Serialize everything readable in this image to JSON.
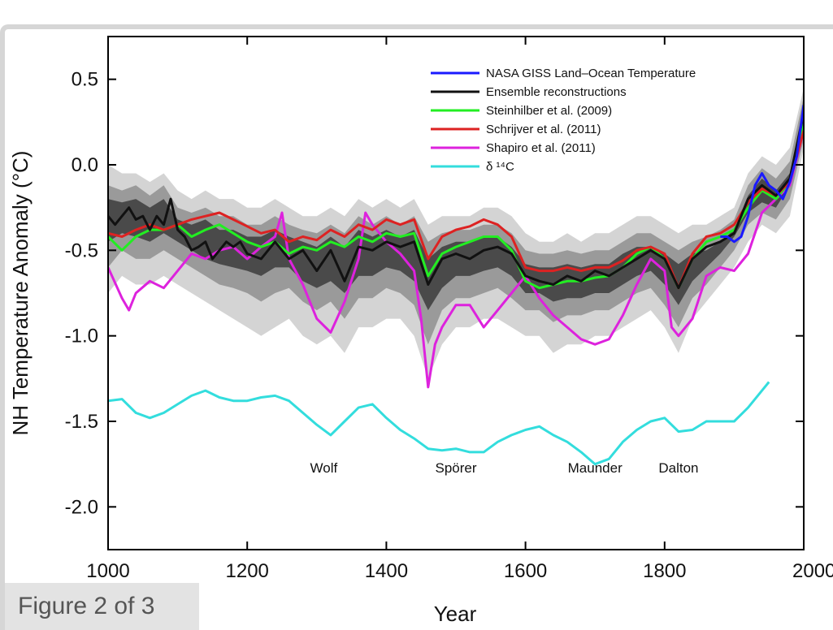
{
  "figure_caption": "Figure 2 of 3",
  "chart_data": {
    "type": "line",
    "xlabel": "Year",
    "ylabel": "NH Temperature Anomaly  (°C)",
    "xlim": [
      1000,
      2000
    ],
    "ylim": [
      -2.25,
      0.75
    ],
    "x_ticks": [
      1000,
      1200,
      1400,
      1600,
      1800,
      2000
    ],
    "y_ticks": [
      0.5,
      0.0,
      -0.5,
      -1.0,
      -1.5,
      -2.0
    ],
    "x_tick_labels": [
      "1000",
      "1200",
      "1400",
      "1600",
      "1800",
      "2000"
    ],
    "y_tick_labels": [
      "0.5",
      "0.0",
      "-0.5",
      "-1.0",
      "-1.5",
      "-2.0"
    ],
    "legend_position": "top-right",
    "grid": false,
    "colors": {
      "nasa": "#1a1aff",
      "ensemble": "#111111",
      "steinhilber": "#22ee22",
      "schrijver": "#dd2222",
      "shapiro": "#dd22dd",
      "c14": "#33dddd",
      "band_outer": "#d4d4d4",
      "band_mid": "#9a9a9a",
      "band_inner": "#4a4a4a"
    },
    "ensemble_band": {
      "x": [
        1000,
        1020,
        1040,
        1060,
        1080,
        1100,
        1120,
        1140,
        1160,
        1180,
        1200,
        1220,
        1240,
        1260,
        1280,
        1300,
        1320,
        1340,
        1360,
        1380,
        1400,
        1420,
        1440,
        1460,
        1480,
        1500,
        1520,
        1540,
        1560,
        1580,
        1600,
        1620,
        1640,
        1660,
        1680,
        1700,
        1720,
        1740,
        1760,
        1780,
        1800,
        1820,
        1840,
        1860,
        1880,
        1900,
        1920,
        1940,
        1960,
        1980,
        2000
      ],
      "outer_low": [
        -0.75,
        -0.65,
        -0.7,
        -0.7,
        -0.65,
        -0.7,
        -0.75,
        -0.8,
        -0.85,
        -0.9,
        -0.95,
        -1.0,
        -0.95,
        -0.9,
        -1.0,
        -1.05,
        -1.0,
        -1.1,
        -0.95,
        -0.95,
        -0.9,
        -0.9,
        -1.0,
        -1.25,
        -1.05,
        -0.95,
        -0.95,
        -0.9,
        -0.9,
        -0.95,
        -1.0,
        -1.0,
        -1.1,
        -1.05,
        -1.05,
        -1.0,
        -1.0,
        -0.95,
        -0.9,
        -0.85,
        -0.95,
        -1.1,
        -0.9,
        -0.8,
        -0.7,
        -0.6,
        -0.45,
        -0.35,
        -0.4,
        -0.3,
        0.1
      ],
      "outer_high": [
        0.0,
        -0.05,
        -0.05,
        -0.1,
        -0.05,
        -0.15,
        -0.2,
        -0.15,
        -0.2,
        -0.2,
        -0.25,
        -0.25,
        -0.2,
        -0.25,
        -0.3,
        -0.3,
        -0.25,
        -0.3,
        -0.2,
        -0.25,
        -0.2,
        -0.25,
        -0.2,
        -0.35,
        -0.3,
        -0.3,
        -0.3,
        -0.25,
        -0.25,
        -0.3,
        -0.4,
        -0.45,
        -0.45,
        -0.4,
        -0.45,
        -0.4,
        -0.4,
        -0.35,
        -0.3,
        -0.3,
        -0.35,
        -0.4,
        -0.35,
        -0.35,
        -0.3,
        -0.25,
        -0.05,
        0.05,
        0.0,
        0.1,
        0.45
      ],
      "mid_low": [
        -0.6,
        -0.5,
        -0.55,
        -0.55,
        -0.5,
        -0.55,
        -0.6,
        -0.65,
        -0.7,
        -0.72,
        -0.75,
        -0.8,
        -0.75,
        -0.72,
        -0.8,
        -0.85,
        -0.8,
        -0.9,
        -0.78,
        -0.78,
        -0.72,
        -0.75,
        -0.82,
        -1.05,
        -0.85,
        -0.78,
        -0.78,
        -0.75,
        -0.72,
        -0.78,
        -0.85,
        -0.85,
        -0.92,
        -0.88,
        -0.88,
        -0.85,
        -0.85,
        -0.8,
        -0.75,
        -0.72,
        -0.82,
        -0.95,
        -0.78,
        -0.7,
        -0.6,
        -0.5,
        -0.35,
        -0.28,
        -0.32,
        -0.2,
        0.15
      ],
      "mid_high": [
        -0.12,
        -0.15,
        -0.12,
        -0.18,
        -0.12,
        -0.25,
        -0.28,
        -0.25,
        -0.3,
        -0.3,
        -0.35,
        -0.35,
        -0.3,
        -0.35,
        -0.38,
        -0.4,
        -0.35,
        -0.4,
        -0.3,
        -0.35,
        -0.3,
        -0.35,
        -0.3,
        -0.45,
        -0.4,
        -0.38,
        -0.38,
        -0.35,
        -0.35,
        -0.4,
        -0.5,
        -0.52,
        -0.52,
        -0.5,
        -0.52,
        -0.5,
        -0.5,
        -0.45,
        -0.4,
        -0.4,
        -0.45,
        -0.5,
        -0.45,
        -0.42,
        -0.38,
        -0.32,
        -0.12,
        -0.02,
        -0.08,
        0.02,
        0.4
      ],
      "inner_low": [
        -0.45,
        -0.4,
        -0.42,
        -0.45,
        -0.4,
        -0.45,
        -0.5,
        -0.55,
        -0.58,
        -0.6,
        -0.62,
        -0.65,
        -0.6,
        -0.6,
        -0.68,
        -0.72,
        -0.68,
        -0.75,
        -0.65,
        -0.65,
        -0.6,
        -0.62,
        -0.68,
        -0.85,
        -0.72,
        -0.65,
        -0.65,
        -0.62,
        -0.6,
        -0.65,
        -0.75,
        -0.75,
        -0.8,
        -0.78,
        -0.78,
        -0.75,
        -0.75,
        -0.7,
        -0.65,
        -0.62,
        -0.7,
        -0.82,
        -0.68,
        -0.6,
        -0.52,
        -0.42,
        -0.28,
        -0.22,
        -0.25,
        -0.12,
        0.2
      ],
      "inner_high": [
        -0.2,
        -0.22,
        -0.2,
        -0.25,
        -0.2,
        -0.32,
        -0.35,
        -0.32,
        -0.38,
        -0.38,
        -0.42,
        -0.42,
        -0.38,
        -0.42,
        -0.45,
        -0.48,
        -0.42,
        -0.48,
        -0.38,
        -0.42,
        -0.38,
        -0.42,
        -0.38,
        -0.55,
        -0.48,
        -0.45,
        -0.45,
        -0.42,
        -0.42,
        -0.48,
        -0.58,
        -0.6,
        -0.6,
        -0.58,
        -0.6,
        -0.58,
        -0.58,
        -0.52,
        -0.48,
        -0.48,
        -0.52,
        -0.58,
        -0.52,
        -0.5,
        -0.45,
        -0.38,
        -0.18,
        -0.08,
        -0.15,
        -0.05,
        0.35
      ]
    },
    "series": [
      {
        "name": "NASA GISS Land–Ocean Temperature",
        "color": "#1a1aff",
        "x": [
          1880,
          1890,
          1900,
          1910,
          1920,
          1930,
          1940,
          1950,
          1960,
          1970,
          1980,
          1990,
          2000
        ],
        "y": [
          -0.42,
          -0.42,
          -0.45,
          -0.42,
          -0.3,
          -0.12,
          -0.05,
          -0.12,
          -0.15,
          -0.2,
          -0.1,
          0.05,
          0.35
        ]
      },
      {
        "name": "Ensemble reconstructions",
        "color": "#111111",
        "x": [
          1000,
          1010,
          1020,
          1030,
          1040,
          1050,
          1060,
          1070,
          1080,
          1090,
          1100,
          1110,
          1120,
          1130,
          1140,
          1150,
          1160,
          1170,
          1180,
          1190,
          1200,
          1220,
          1240,
          1260,
          1280,
          1300,
          1320,
          1340,
          1360,
          1380,
          1400,
          1420,
          1440,
          1460,
          1480,
          1500,
          1520,
          1540,
          1560,
          1580,
          1600,
          1620,
          1640,
          1660,
          1680,
          1700,
          1720,
          1740,
          1760,
          1780,
          1800,
          1820,
          1840,
          1860,
          1880,
          1900,
          1920,
          1940,
          1960,
          1980,
          2000
        ],
        "y": [
          -0.3,
          -0.35,
          -0.3,
          -0.25,
          -0.32,
          -0.3,
          -0.38,
          -0.3,
          -0.35,
          -0.2,
          -0.38,
          -0.42,
          -0.5,
          -0.48,
          -0.45,
          -0.55,
          -0.5,
          -0.45,
          -0.48,
          -0.45,
          -0.52,
          -0.55,
          -0.45,
          -0.55,
          -0.5,
          -0.62,
          -0.5,
          -0.68,
          -0.48,
          -0.5,
          -0.45,
          -0.48,
          -0.45,
          -0.7,
          -0.55,
          -0.52,
          -0.55,
          -0.5,
          -0.48,
          -0.52,
          -0.65,
          -0.68,
          -0.7,
          -0.65,
          -0.68,
          -0.62,
          -0.65,
          -0.6,
          -0.55,
          -0.5,
          -0.55,
          -0.72,
          -0.55,
          -0.48,
          -0.45,
          -0.4,
          -0.2,
          -0.12,
          -0.18,
          -0.08,
          0.3
        ]
      },
      {
        "name": "Steinhilber et al. (2009)",
        "color": "#22ee22",
        "x": [
          1000,
          1020,
          1040,
          1060,
          1080,
          1100,
          1120,
          1140,
          1160,
          1180,
          1200,
          1220,
          1240,
          1260,
          1280,
          1300,
          1320,
          1340,
          1360,
          1380,
          1400,
          1420,
          1440,
          1460,
          1480,
          1500,
          1520,
          1540,
          1560,
          1580,
          1600,
          1620,
          1640,
          1660,
          1680,
          1700,
          1720,
          1740,
          1760,
          1780,
          1800,
          1820,
          1840,
          1860,
          1880,
          1900,
          1920,
          1940,
          1960,
          1980,
          2000
        ],
        "y": [
          -0.42,
          -0.5,
          -0.42,
          -0.38,
          -0.38,
          -0.35,
          -0.42,
          -0.38,
          -0.35,
          -0.4,
          -0.45,
          -0.48,
          -0.45,
          -0.52,
          -0.48,
          -0.5,
          -0.45,
          -0.48,
          -0.42,
          -0.45,
          -0.4,
          -0.42,
          -0.4,
          -0.65,
          -0.52,
          -0.48,
          -0.45,
          -0.42,
          -0.42,
          -0.5,
          -0.68,
          -0.72,
          -0.7,
          -0.68,
          -0.68,
          -0.66,
          -0.65,
          -0.6,
          -0.52,
          -0.48,
          -0.55,
          -0.72,
          -0.55,
          -0.45,
          -0.42,
          -0.38,
          -0.25,
          -0.15,
          -0.2,
          -0.1,
          0.25
        ]
      },
      {
        "name": "Schrijver et al. (2011)",
        "color": "#dd2222",
        "x": [
          1000,
          1020,
          1040,
          1060,
          1080,
          1100,
          1120,
          1140,
          1160,
          1180,
          1200,
          1220,
          1240,
          1260,
          1280,
          1300,
          1320,
          1340,
          1360,
          1380,
          1400,
          1420,
          1440,
          1460,
          1480,
          1500,
          1520,
          1540,
          1560,
          1580,
          1600,
          1620,
          1640,
          1660,
          1680,
          1700,
          1720,
          1740,
          1760,
          1780,
          1800,
          1820,
          1840,
          1860,
          1880,
          1900,
          1920,
          1940,
          1960,
          1980,
          2000
        ],
        "y": [
          -0.4,
          -0.42,
          -0.38,
          -0.35,
          -0.38,
          -0.35,
          -0.32,
          -0.3,
          -0.28,
          -0.32,
          -0.36,
          -0.4,
          -0.38,
          -0.45,
          -0.42,
          -0.44,
          -0.38,
          -0.42,
          -0.35,
          -0.38,
          -0.32,
          -0.35,
          -0.32,
          -0.55,
          -0.42,
          -0.38,
          -0.36,
          -0.32,
          -0.35,
          -0.42,
          -0.6,
          -0.62,
          -0.62,
          -0.6,
          -0.62,
          -0.6,
          -0.6,
          -0.56,
          -0.5,
          -0.48,
          -0.52,
          -0.72,
          -0.52,
          -0.42,
          -0.4,
          -0.35,
          -0.22,
          -0.14,
          -0.18,
          -0.1,
          0.2
        ]
      },
      {
        "name": "Shapiro et al. (2011)",
        "color": "#dd22dd",
        "x": [
          1000,
          1020,
          1030,
          1040,
          1060,
          1080,
          1100,
          1120,
          1140,
          1160,
          1180,
          1200,
          1220,
          1240,
          1250,
          1260,
          1280,
          1300,
          1320,
          1340,
          1360,
          1370,
          1380,
          1400,
          1420,
          1440,
          1450,
          1460,
          1470,
          1480,
          1500,
          1520,
          1540,
          1560,
          1580,
          1600,
          1620,
          1640,
          1660,
          1680,
          1700,
          1720,
          1740,
          1760,
          1780,
          1800,
          1810,
          1820,
          1840,
          1860,
          1880,
          1900,
          1920,
          1940,
          1960,
          1980,
          2000
        ],
        "y": [
          -0.6,
          -0.78,
          -0.85,
          -0.75,
          -0.68,
          -0.72,
          -0.62,
          -0.52,
          -0.55,
          -0.5,
          -0.48,
          -0.55,
          -0.48,
          -0.42,
          -0.28,
          -0.55,
          -0.7,
          -0.9,
          -0.98,
          -0.8,
          -0.55,
          -0.28,
          -0.35,
          -0.45,
          -0.52,
          -0.62,
          -0.9,
          -1.3,
          -1.05,
          -0.95,
          -0.82,
          -0.82,
          -0.95,
          -0.85,
          -0.75,
          -0.65,
          -0.78,
          -0.88,
          -0.95,
          -1.02,
          -1.05,
          -1.02,
          -0.88,
          -0.7,
          -0.55,
          -0.62,
          -0.95,
          -1.0,
          -0.9,
          -0.65,
          -0.6,
          -0.62,
          -0.52,
          -0.28,
          -0.2,
          -0.12,
          0.2
        ]
      },
      {
        "name": "δ ¹⁴C",
        "color": "#33dddd",
        "x": [
          1000,
          1020,
          1040,
          1060,
          1080,
          1100,
          1120,
          1140,
          1160,
          1180,
          1200,
          1220,
          1240,
          1260,
          1280,
          1300,
          1320,
          1340,
          1360,
          1380,
          1400,
          1420,
          1440,
          1460,
          1480,
          1500,
          1520,
          1540,
          1560,
          1580,
          1600,
          1620,
          1640,
          1660,
          1680,
          1700,
          1720,
          1740,
          1760,
          1780,
          1800,
          1820,
          1840,
          1860,
          1880,
          1900,
          1920,
          1940,
          1950
        ],
        "y": [
          -1.38,
          -1.37,
          -1.45,
          -1.48,
          -1.45,
          -1.4,
          -1.35,
          -1.32,
          -1.36,
          -1.38,
          -1.38,
          -1.36,
          -1.35,
          -1.38,
          -1.45,
          -1.52,
          -1.58,
          -1.5,
          -1.42,
          -1.4,
          -1.48,
          -1.55,
          -1.6,
          -1.66,
          -1.67,
          -1.66,
          -1.68,
          -1.68,
          -1.62,
          -1.58,
          -1.55,
          -1.53,
          -1.58,
          -1.62,
          -1.68,
          -1.75,
          -1.72,
          -1.62,
          -1.55,
          -1.5,
          -1.48,
          -1.56,
          -1.55,
          -1.5,
          -1.5,
          -1.5,
          -1.42,
          -1.32,
          -1.27
        ]
      }
    ],
    "annotations": [
      {
        "text": "Wolf",
        "x": 1310,
        "y": -1.8
      },
      {
        "text": "Spörer",
        "x": 1500,
        "y": -1.8
      },
      {
        "text": "Maunder",
        "x": 1700,
        "y": -1.8
      },
      {
        "text": "Dalton",
        "x": 1820,
        "y": -1.8
      }
    ]
  }
}
